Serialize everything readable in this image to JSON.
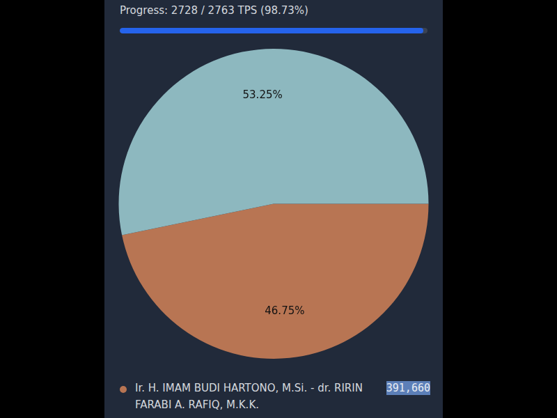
{
  "progress": {
    "label": "Progress: 2728 / 2763 TPS (98.73%)",
    "percent": 98.73
  },
  "chart_data": {
    "type": "pie",
    "categories": [
      "Ir. H. IMAM BUDI HARTONO, M.Si. - dr. RIRIN FARABI A. RAFIQ, M.K.K.",
      null
    ],
    "values": [
      46.75,
      53.25
    ],
    "value_labels": [
      "46.75%",
      "53.25%"
    ],
    "data_labels": true,
    "colors": [
      "#b87553",
      "#8db8bf"
    ],
    "votes": [
      391660,
      null
    ],
    "vote_labels": [
      "391,660",
      null
    ],
    "legend": "bottom"
  }
}
